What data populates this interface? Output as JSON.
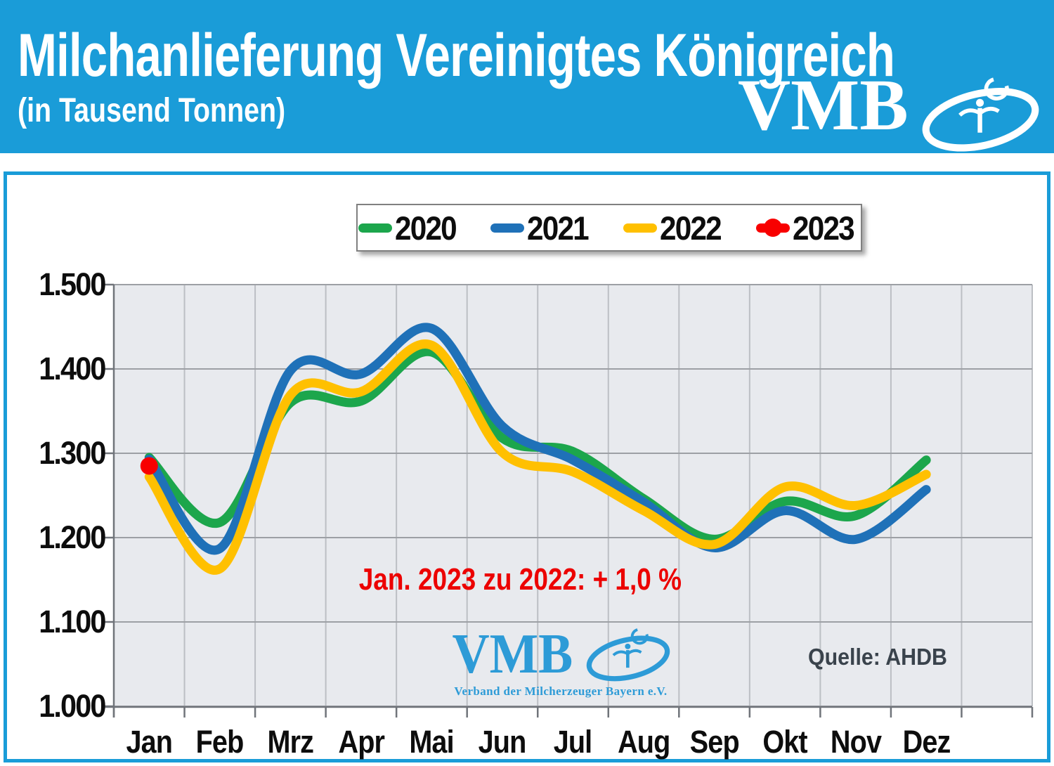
{
  "header": {
    "title": "Milchanlieferung Vereinigtes Königreich",
    "subtitle": "(in Tausend Tonnen)",
    "logo_text": "VMB"
  },
  "chart_data": {
    "type": "line",
    "categories": [
      "Jan",
      "Feb",
      "Mrz",
      "Apr",
      "Mai",
      "Jun",
      "Jul",
      "Aug",
      "Sep",
      "Okt",
      "Nov",
      "Dez"
    ],
    "series": [
      {
        "name": "2020",
        "color": "#1CA64C",
        "values": [
          1295,
          1218,
          1360,
          1362,
          1420,
          1318,
          1302,
          1246,
          1198,
          1243,
          1226,
          1292
        ]
      },
      {
        "name": "2021",
        "color": "#1F71B8",
        "values": [
          1293,
          1187,
          1398,
          1394,
          1448,
          1332,
          1292,
          1242,
          1188,
          1232,
          1198,
          1257
        ]
      },
      {
        "name": "2022",
        "color": "#FFC000",
        "values": [
          1272,
          1163,
          1369,
          1373,
          1428,
          1301,
          1278,
          1232,
          1192,
          1260,
          1238,
          1275
        ]
      },
      {
        "name": "2023",
        "color": "#F80000",
        "marker": "circle",
        "values": [
          1285
        ]
      }
    ],
    "ylim": [
      1000,
      1500
    ],
    "ytick_values": [
      1500,
      1400,
      1300,
      1200,
      1100,
      1000
    ],
    "ytick_labels": [
      "1.500",
      "1.400",
      "1.300",
      "1.200",
      "1.100",
      "1.000"
    ],
    "grid": true,
    "legend_position": "top"
  },
  "annotation": {
    "text": "Jan. 2023 zu 2022: + 1,0 %"
  },
  "source": {
    "label": "Quelle: AHDB"
  },
  "watermark": {
    "logo_text": "VMB",
    "subtext": "Verband der Milcherzeuger Bayern e.V."
  },
  "colors": {
    "header_bg": "#1A9CD8",
    "panel_border": "#1A9CD8",
    "plot_bg": "#E8EAEE",
    "gridline": "#9DA0A5",
    "vertical_gridline": "#BCBFC4",
    "axis": "#70747A",
    "annotation_red": "#EC0000",
    "source_text": "#3A434C",
    "watermark_blue": "#2D9BD7",
    "legend_border": "#808080"
  }
}
